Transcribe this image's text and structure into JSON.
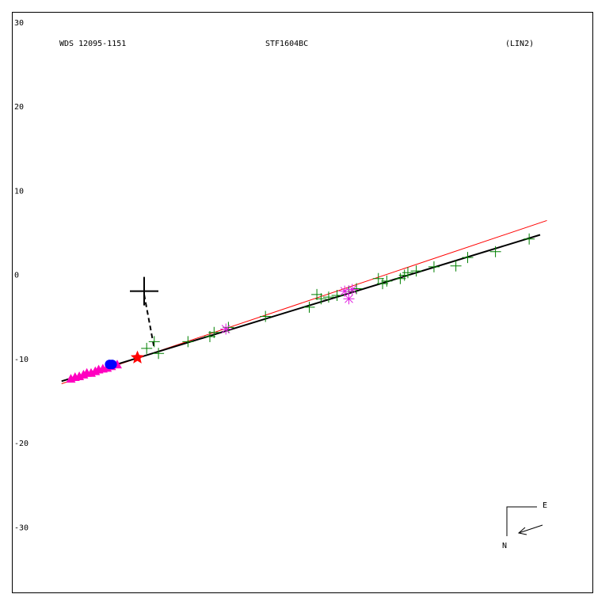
{
  "chart_data": {
    "type": "scatter",
    "title": "WDS 12095-1151",
    "subtitle": "STF1604BC",
    "annotation": "(LIN2)",
    "compass": {
      "east": "E",
      "north": "N"
    },
    "xlim": [
      -15.7,
      53.3
    ],
    "ylim": [
      -35.9,
      33.2
    ],
    "yticks": [
      30,
      20,
      10,
      0,
      -10,
      -20,
      -30
    ],
    "series": [
      {
        "marker": "line",
        "color": "#ff0000",
        "width": 1,
        "x": [
          -9.8,
          47.8
        ],
        "values": [
          -11.0,
          8.4
        ]
      },
      {
        "marker": "line",
        "color": "#000000",
        "width": 2,
        "x": [
          -9.8,
          47.0
        ],
        "values": [
          -10.7,
          6.7
        ]
      },
      {
        "marker": "dashed",
        "color": "#000000",
        "width": 2,
        "x": [
          0,
          1.2
        ],
        "values": [
          -0.4,
          -6.8
        ]
      },
      {
        "marker": "plus",
        "color": "#008000",
        "x": [
          0.3,
          1.2,
          1.7,
          5.2,
          7.8,
          8.3,
          10.0,
          14.4,
          19.6,
          20.5,
          21.0,
          21.9,
          22.9,
          24.3,
          25.2,
          27.8,
          28.3,
          28.8,
          30.4,
          30.9,
          31.3,
          32.3,
          34.4,
          37.0,
          38.4,
          41.7,
          45.7
        ],
        "values": [
          -6.8,
          -6.0,
          -7.4,
          -6.0,
          -5.4,
          -4.9,
          -4.3,
          -3.0,
          -1.9,
          -0.4,
          -0.9,
          -0.7,
          -0.5,
          0.0,
          0.3,
          1.5,
          0.9,
          1.2,
          1.5,
          1.9,
          2.2,
          2.4,
          2.9,
          3.0,
          4.0,
          4.7,
          6.2
        ]
      },
      {
        "marker": "asterisk",
        "color": "#e020e0",
        "x": [
          9.7,
          23.8,
          24.3,
          24.7
        ],
        "values": [
          -4.5,
          0.0,
          -0.9,
          0.2
        ]
      },
      {
        "marker": "triangle",
        "color": "#ff00c0",
        "x": [
          -8.7,
          -8.2,
          -7.7,
          -7.2,
          -6.8,
          -6.3,
          -5.8,
          -5.4,
          -4.9,
          -4.4,
          -3.9,
          -3.2
        ],
        "values": [
          -10.4,
          -10.2,
          -10.1,
          -9.9,
          -9.7,
          -9.7,
          -9.5,
          -9.3,
          -9.2,
          -9.1,
          -8.9,
          -8.7
        ]
      },
      {
        "marker": "circle",
        "color": "#0000ff",
        "x": [
          -4.1,
          -3.8
        ],
        "values": [
          -8.7,
          -8.7
        ]
      },
      {
        "marker": "star",
        "color": "#ff0000",
        "x": [
          -0.8
        ],
        "values": [
          -7.9
        ]
      },
      {
        "marker": "cross",
        "color": "#000000",
        "x": [
          0
        ],
        "values": [
          0
        ]
      }
    ]
  }
}
